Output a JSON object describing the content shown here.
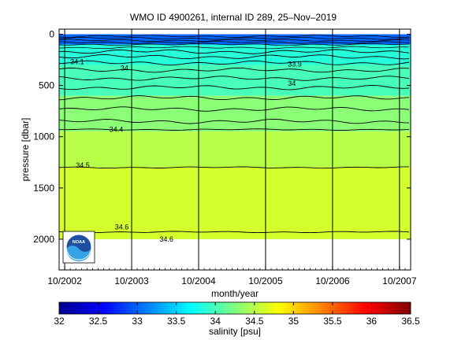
{
  "chart_data": {
    "type": "heatmap",
    "title": "WMO ID 4900261, internal ID 289, 25–Nov–2019",
    "xlabel": "month/year",
    "ylabel": "pressure [dbar]",
    "x_ticks": [
      "10/2002",
      "10/2003",
      "10/2004",
      "10/2005",
      "10/2006",
      "10/2007"
    ],
    "y_ticks": [
      0,
      500,
      1000,
      1500,
      2000
    ],
    "xlim": [
      "2002-09",
      "2007-12"
    ],
    "ylim": [
      2300,
      -50
    ],
    "y_reversed": true,
    "max_pressure": 2000,
    "grid": false,
    "colorbar": {
      "label": "salinity [psu]",
      "ticks": [
        "32",
        "32.5",
        "33",
        "33.5",
        "34",
        "34.5",
        "35",
        "35.5",
        "36",
        "36.5"
      ],
      "range": [
        32,
        36.5
      ],
      "colors": [
        "#00008f",
        "#0000ff",
        "#0080ff",
        "#00ffff",
        "#80ff80",
        "#ffff00",
        "#ff8000",
        "#ff0000",
        "#800000"
      ]
    },
    "salinity_layers": [
      {
        "top": 0,
        "bottom": 100,
        "value": 33.0
      },
      {
        "top": 100,
        "bottom": 300,
        "value": 33.85
      },
      {
        "top": 300,
        "bottom": 600,
        "value": 34.0
      },
      {
        "top": 600,
        "bottom": 950,
        "value": 34.3
      },
      {
        "top": 950,
        "bottom": 1300,
        "value": 34.5
      },
      {
        "top": 1300,
        "bottom": 2000,
        "value": 34.62
      }
    ],
    "contour_labels": [
      {
        "text": "34.1",
        "x": "2002-11",
        "y": 270
      },
      {
        "text": "34",
        "x": "2003-08",
        "y": 330
      },
      {
        "text": "33.9",
        "x": "2006-02",
        "y": 290
      },
      {
        "text": "34",
        "x": "2006-02",
        "y": 480
      },
      {
        "text": "34.4",
        "x": "2003-06",
        "y": 930
      },
      {
        "text": "34.5",
        "x": "2002-12",
        "y": 1280
      },
      {
        "text": "34.6",
        "x": "2003-07",
        "y": 1880
      },
      {
        "text": "34.6",
        "x": "2004-03",
        "y": 2000
      }
    ],
    "vertical_markers": [
      "2002-10",
      "2003-10",
      "2004-10",
      "2005-10",
      "2006-10",
      "2007-10"
    ],
    "logo_text": "NOAA"
  }
}
